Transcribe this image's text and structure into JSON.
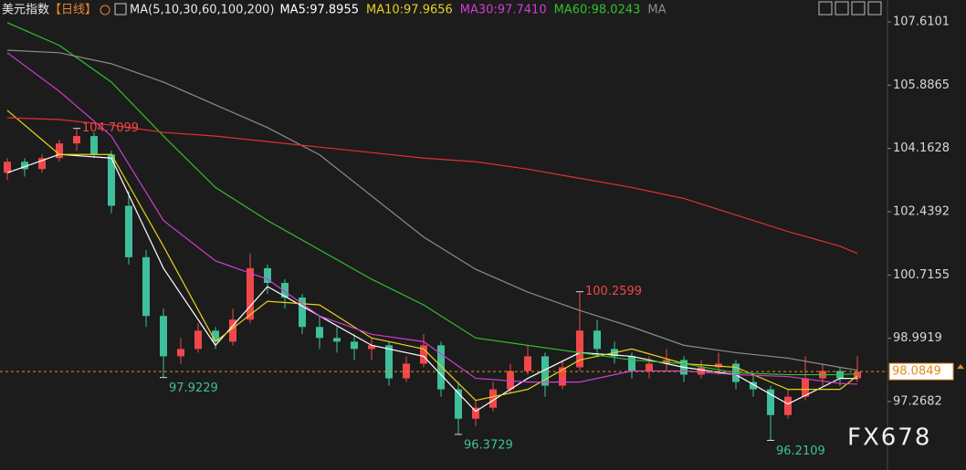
{
  "chart_data": {
    "type": "candlestick",
    "title": "美元指数",
    "period": "【日线】",
    "ma_setting": "MA(5,10,30,60,100,200)",
    "watermark": "FX678",
    "ylim": [
      95.403,
      108.207
    ],
    "yticks": [
      107.6101,
      105.8865,
      104.1628,
      102.4392,
      100.7155,
      98.9919,
      97.2682
    ],
    "current_price": 98.0849,
    "up_color": "#f0484a",
    "down_color": "#3fbf9c",
    "open": [
      103.5,
      103.8,
      103.6,
      103.9,
      104.3,
      104.5,
      104.0,
      102.6,
      101.2,
      99.6,
      98.5,
      98.7,
      99.2,
      98.9,
      99.5,
      100.9,
      100.5,
      100.1,
      99.3,
      99.0,
      98.9,
      98.7,
      98.8,
      97.9,
      98.3,
      98.8,
      97.6,
      96.8,
      97.1,
      97.6,
      98.1,
      98.5,
      97.7,
      98.2,
      99.2,
      98.7,
      98.5,
      98.1,
      98.3,
      98.4,
      98.0,
      98.2,
      98.3,
      97.8,
      97.6,
      96.9,
      97.4,
      97.9,
      98.1,
      97.9
    ],
    "high": [
      103.9,
      103.9,
      104.0,
      104.4,
      104.7099,
      104.6,
      104.1,
      103.0,
      101.4,
      99.8,
      99.0,
      99.4,
      99.3,
      99.8,
      101.3,
      101.0,
      100.6,
      100.2,
      99.6,
      99.3,
      99.1,
      99.0,
      98.9,
      98.5,
      99.1,
      98.9,
      97.8,
      97.3,
      97.8,
      98.3,
      98.8,
      98.6,
      98.4,
      100.2599,
      99.5,
      98.9,
      98.6,
      98.5,
      98.7,
      98.5,
      98.4,
      98.6,
      98.4,
      98.0,
      97.7,
      97.6,
      98.5,
      98.3,
      98.2,
      98.5
    ],
    "low": [
      103.3,
      103.4,
      103.5,
      103.8,
      104.1,
      103.9,
      102.4,
      101.0,
      99.3,
      97.9229,
      98.3,
      98.6,
      98.7,
      98.8,
      99.4,
      100.2,
      99.8,
      99.1,
      98.7,
      98.6,
      98.4,
      98.4,
      97.7,
      97.8,
      98.2,
      97.4,
      96.3729,
      96.6,
      97.0,
      97.5,
      98.0,
      97.4,
      97.6,
      98.1,
      98.5,
      98.3,
      97.9,
      97.9,
      98.1,
      97.8,
      97.9,
      98.0,
      97.6,
      97.4,
      96.2109,
      96.8,
      97.3,
      97.7,
      97.7,
      97.8
    ],
    "close": [
      103.8,
      103.6,
      103.9,
      104.3,
      104.5,
      104.0,
      102.6,
      101.2,
      99.6,
      98.5,
      98.7,
      99.2,
      98.9,
      99.5,
      100.9,
      100.5,
      100.1,
      99.3,
      99.0,
      98.9,
      98.7,
      98.8,
      97.9,
      98.3,
      98.8,
      97.6,
      96.8,
      97.1,
      97.6,
      98.1,
      98.5,
      97.7,
      98.2,
      99.2,
      98.7,
      98.5,
      98.1,
      98.3,
      98.4,
      98.0,
      98.2,
      98.3,
      97.8,
      97.6,
      96.9,
      97.4,
      97.9,
      98.1,
      97.9,
      98.08
    ],
    "annotations": [
      104.7099,
      97.9229,
      100.2599,
      96.3729,
      96.2109
    ],
    "series": [
      {
        "name": "MA5:97.8955",
        "color": "#ffffff",
        "x": [
          0,
          3,
          6,
          9,
          12,
          15,
          18,
          21,
          24,
          27,
          30,
          33,
          36,
          39,
          42,
          45,
          48,
          49
        ],
        "values": [
          103.5,
          104.0,
          103.9,
          100.9,
          98.8,
          100.4,
          99.6,
          98.8,
          98.5,
          97.0,
          97.9,
          98.6,
          98.5,
          98.2,
          98.0,
          97.2,
          97.9,
          97.8955
        ]
      },
      {
        "name": "MA10:97.9656",
        "color": "#e6d21e",
        "x": [
          0,
          3,
          6,
          9,
          12,
          15,
          18,
          21,
          24,
          27,
          30,
          33,
          36,
          39,
          42,
          45,
          48,
          49
        ],
        "values": [
          105.2,
          104.0,
          104.0,
          101.5,
          98.9,
          100.0,
          99.9,
          99.0,
          98.7,
          97.3,
          97.6,
          98.4,
          98.7,
          98.3,
          98.2,
          97.6,
          97.6,
          97.9656
        ]
      },
      {
        "name": "MA30:97.7410",
        "color": "#d23cd2",
        "x": [
          0,
          3,
          6,
          9,
          12,
          15,
          18,
          21,
          24,
          27,
          30,
          33,
          36,
          39,
          42,
          45,
          48,
          49
        ],
        "values": [
          106.77,
          105.72,
          104.5,
          102.2,
          101.1,
          100.6,
          99.6,
          99.1,
          98.9,
          97.9,
          97.8,
          97.8,
          98.1,
          98.1,
          98.0,
          97.95,
          97.76,
          97.741
        ]
      },
      {
        "name": "MA60:98.0243",
        "color": "#2fc02f",
        "x": [
          0,
          3,
          6,
          9,
          12,
          15,
          18,
          21,
          24,
          27,
          30,
          33,
          36,
          39,
          42,
          45,
          48,
          49
        ],
        "values": [
          107.59,
          106.97,
          105.97,
          104.5,
          103.1,
          102.2,
          101.4,
          100.6,
          99.9,
          99.0,
          98.8,
          98.6,
          98.4,
          98.3,
          98.05,
          98.0,
          98.0,
          98.0243
        ]
      },
      {
        "name": "MA",
        "color": "#8c8c8c",
        "x": [
          0,
          3,
          6,
          9,
          12,
          15,
          18,
          21,
          24,
          27,
          30,
          33,
          36,
          39,
          42,
          45,
          48,
          49
        ],
        "values": [
          106.84,
          106.77,
          106.47,
          105.97,
          105.35,
          104.73,
          103.99,
          102.87,
          101.75,
          100.87,
          100.25,
          99.75,
          99.3,
          98.8,
          98.6,
          98.45,
          98.2,
          98.12
        ]
      },
      {
        "color": "#e03030",
        "x": [
          0,
          3,
          6,
          9,
          12,
          15,
          18,
          21,
          24,
          27,
          30,
          33,
          36,
          39,
          42,
          45,
          48,
          49
        ],
        "values": [
          105.0,
          104.95,
          104.8,
          104.6,
          104.5,
          104.35,
          104.2,
          104.05,
          103.9,
          103.8,
          103.6,
          103.35,
          103.1,
          102.8,
          102.35,
          101.9,
          101.5,
          101.3
        ]
      }
    ]
  }
}
